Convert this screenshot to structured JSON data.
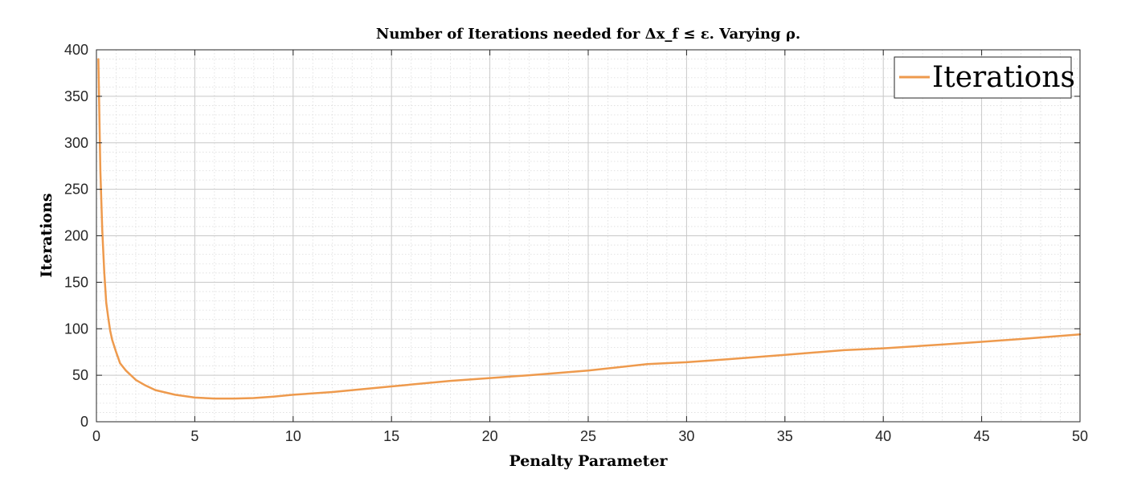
{
  "chart_data": {
    "type": "line",
    "title": "Number of Iterations needed for Δx_f ≤ ε.  Varying ρ.",
    "xlabel": "Penalty Parameter",
    "ylabel": "Iterations",
    "xlim": [
      0,
      50
    ],
    "ylim": [
      0,
      400
    ],
    "xticks": [
      0,
      5,
      10,
      15,
      20,
      25,
      30,
      35,
      40,
      45,
      50
    ],
    "yticks": [
      0,
      50,
      100,
      150,
      200,
      250,
      300,
      350,
      400
    ],
    "grid": "on (major and minor)",
    "legend_position": "top-right",
    "series": [
      {
        "name": "Iterations",
        "color": "#EE9A4D",
        "x": [
          0.1,
          0.2,
          0.3,
          0.4,
          0.5,
          0.6,
          0.7,
          0.8,
          1.0,
          1.2,
          1.5,
          2.0,
          2.5,
          3.0,
          4.0,
          5.0,
          6.0,
          7.0,
          8.0,
          9.0,
          10.0,
          12.0,
          15.0,
          18.0,
          20.0,
          22.0,
          25.0,
          28.0,
          30.0,
          32.0,
          35.0,
          38.0,
          40.0,
          43.0,
          45.0,
          47.0,
          50.0
        ],
        "y": [
          390,
          270,
          205,
          160,
          128,
          112,
          98,
          88,
          75,
          63,
          55,
          45,
          39,
          34,
          29,
          26,
          25,
          25,
          25.5,
          27,
          29,
          32,
          38,
          44,
          47,
          50,
          55,
          62,
          64,
          67,
          72,
          77,
          79,
          83,
          86,
          89,
          94
        ]
      }
    ]
  }
}
